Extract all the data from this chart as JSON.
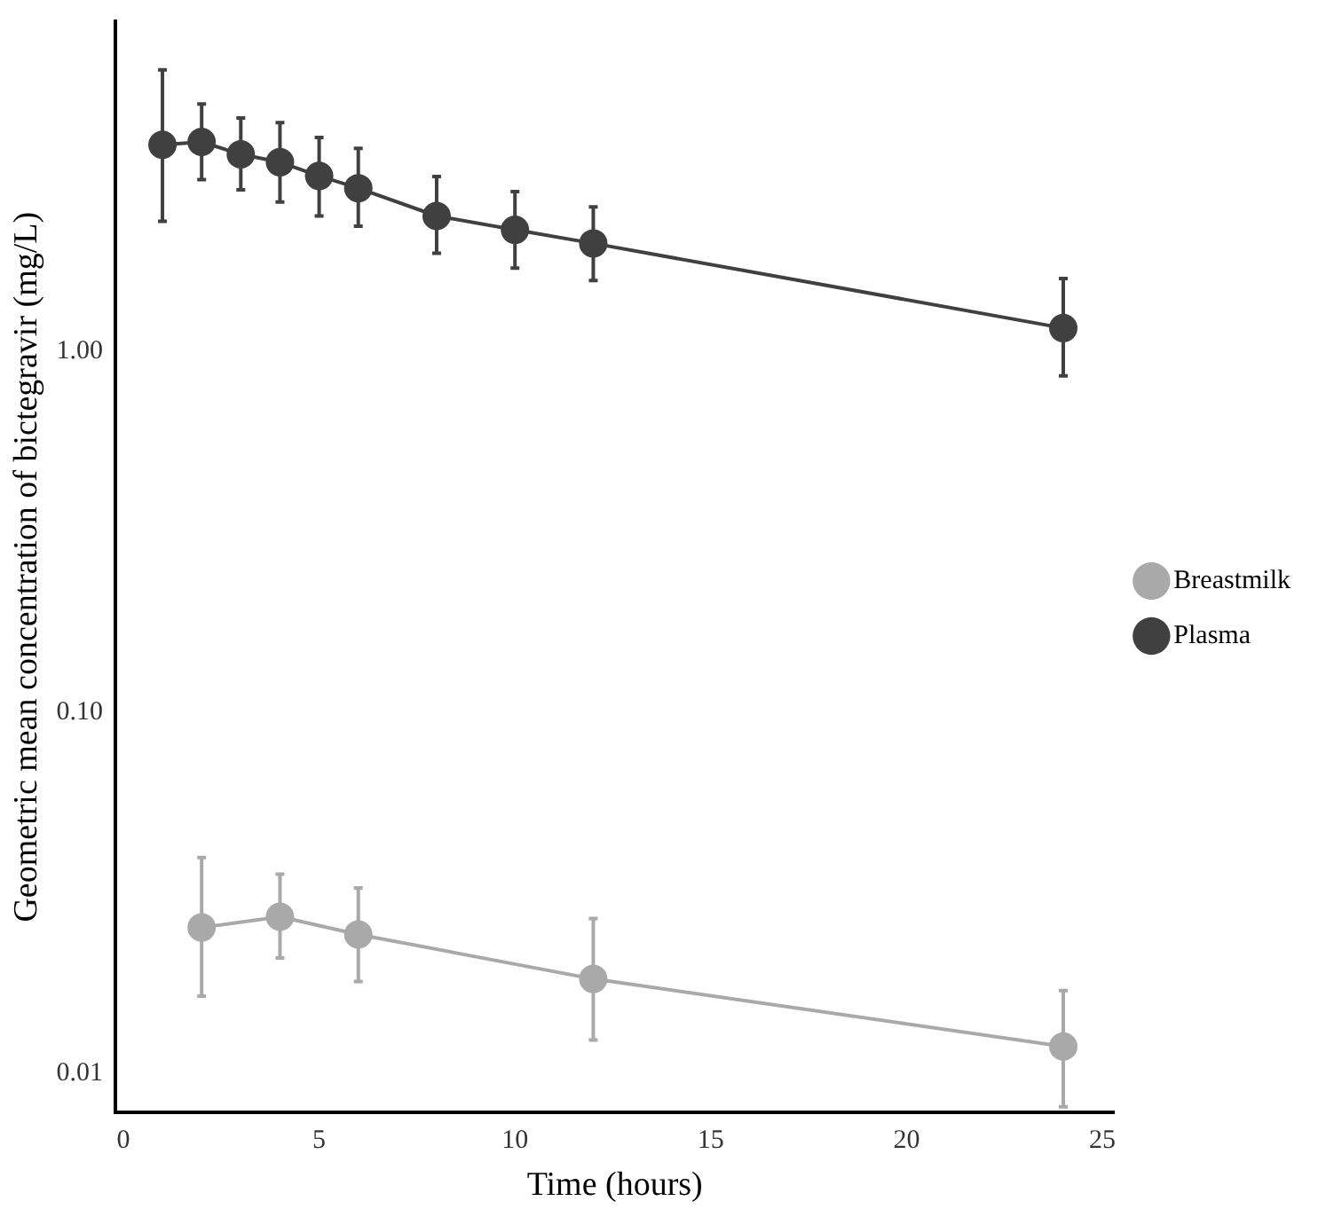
{
  "chart_data": {
    "type": "line",
    "xlabel": "Time (hours)",
    "ylabel": "Geometric mean concentration of bictegravir (mg/L)",
    "log": "y",
    "grid": false,
    "legend": "right",
    "marker": "circle",
    "line_style": "solid",
    "xlim": [
      -0.2,
      25.3
    ],
    "xticks": [
      0,
      5,
      10,
      15,
      20,
      25
    ],
    "ylim": [
      0.0078,
      8.2
    ],
    "yticks": [
      {
        "value": 0.01,
        "label": "0.01"
      },
      {
        "value": 0.1,
        "label": "0.10"
      },
      {
        "value": 1,
        "label": "1.00"
      }
    ],
    "series": [
      {
        "name": "Breastmilk",
        "color": "#a9a9a9",
        "x": [
          2,
          4,
          6,
          12,
          24
        ],
        "values": [
          0.0254,
          0.0272,
          0.0243,
          0.0183,
          0.0119
        ],
        "errors": [
          [
            0.0164,
            0.0397
          ],
          [
            0.0209,
            0.0357
          ],
          [
            0.018,
            0.0327
          ],
          [
            0.0124,
            0.0269
          ],
          [
            0.0081,
            0.017
          ]
        ]
      },
      {
        "name": "Plasma",
        "color": "#404040",
        "x": [
          1,
          2,
          3,
          4,
          5,
          6,
          8,
          10,
          12,
          24
        ],
        "values": [
          3.73,
          3.8,
          3.51,
          3.34,
          3.06,
          2.83,
          2.37,
          2.17,
          1.99,
          1.16
        ],
        "errors": [
          [
            2.29,
            6.02
          ],
          [
            2.99,
            4.84
          ],
          [
            2.8,
            4.43
          ],
          [
            2.59,
            4.3
          ],
          [
            2.37,
            3.91
          ],
          [
            2.22,
            3.65
          ],
          [
            1.87,
            3.05
          ],
          [
            1.7,
            2.77
          ],
          [
            1.57,
            2.51
          ],
          [
            0.855,
            1.59
          ]
        ]
      }
    ]
  }
}
